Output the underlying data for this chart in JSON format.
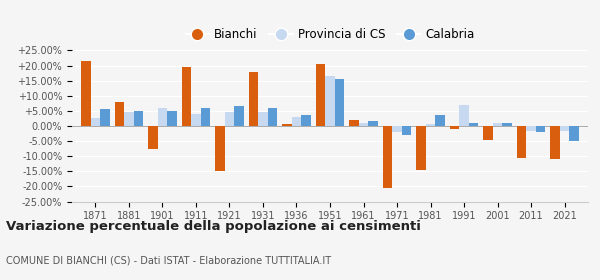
{
  "years": [
    1871,
    1881,
    1901,
    1911,
    1921,
    1931,
    1936,
    1951,
    1961,
    1971,
    1981,
    1991,
    2001,
    2011,
    2021
  ],
  "bianchi": [
    21.5,
    7.8,
    -7.5,
    19.5,
    -15.0,
    18.0,
    0.5,
    20.5,
    2.0,
    -20.5,
    -14.5,
    -1.0,
    -4.5,
    -10.5,
    -11.0
  ],
  "provincia_cs": [
    2.5,
    4.5,
    6.0,
    4.0,
    4.5,
    4.5,
    3.0,
    16.5,
    1.0,
    -2.0,
    0.5,
    7.0,
    1.0,
    -1.5,
    -1.5
  ],
  "calabria": [
    5.5,
    5.0,
    5.0,
    6.0,
    6.5,
    6.0,
    3.5,
    15.5,
    1.5,
    -3.0,
    3.5,
    1.0,
    1.0,
    -2.0,
    -5.0
  ],
  "color_bianchi": "#d95f0e",
  "color_provincia": "#c6d9f0",
  "color_calabria": "#5b9bd5",
  "title": "Variazione percentuale della popolazione ai censimenti",
  "subtitle": "COMUNE DI BIANCHI (CS) - Dati ISTAT - Elaborazione TUTTITALIA.IT",
  "ylim_min": -25,
  "ylim_max": 25,
  "yticks": [
    -25,
    -20,
    -15,
    -10,
    -5,
    0,
    5,
    10,
    15,
    20,
    25
  ],
  "ytick_labels": [
    "-25.00%",
    "-20.00%",
    "-15.00%",
    "-10.00%",
    "-5.00%",
    "0.00%",
    "+5.00%",
    "+10.00%",
    "+15.00%",
    "+20.00%",
    "+25.00%"
  ],
  "bg_color": "#f5f5f5",
  "legend_labels": [
    "Bianchi",
    "Provincia di CS",
    "Calabria"
  ],
  "bar_width": 0.28
}
